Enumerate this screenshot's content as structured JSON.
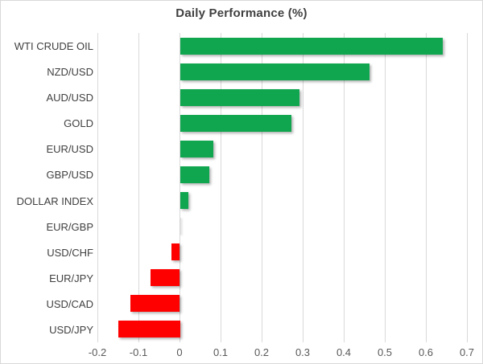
{
  "chart_data": {
    "type": "bar",
    "orientation": "horizontal",
    "title": "Daily Performance (%)",
    "categories": [
      "WTI CRUDE OIL",
      "NZD/USD",
      "AUD/USD",
      "GOLD",
      "EUR/USD",
      "GBP/USD",
      "DOLLAR INDEX",
      "EUR/GBP",
      "USD/CHF",
      "EUR/JPY",
      "USD/CAD",
      "USD/JPY"
    ],
    "values": [
      0.64,
      0.46,
      0.29,
      0.27,
      0.08,
      0.07,
      0.02,
      0.0,
      -0.02,
      -0.07,
      -0.12,
      -0.15
    ],
    "xlim": [
      -0.2,
      0.7
    ],
    "x_ticks": [
      -0.2,
      -0.1,
      0,
      0.1,
      0.2,
      0.3,
      0.4,
      0.5,
      0.6,
      0.7
    ],
    "x_tick_labels": [
      "-0.2",
      "-0.1",
      "0",
      "0.1",
      "0.2",
      "0.3",
      "0.4",
      "0.5",
      "0.6",
      "0.7"
    ],
    "grid": true,
    "legend": "none",
    "xlabel": "",
    "ylabel": "",
    "colors": {
      "positive": "#10A64F",
      "negative": "#FF0000",
      "gridline": "#D9D9D9",
      "title": "#404040",
      "category_label": "#404040",
      "tick_label": "#595959",
      "border": "#D9D9D9",
      "background": "#FFFFFF"
    }
  }
}
